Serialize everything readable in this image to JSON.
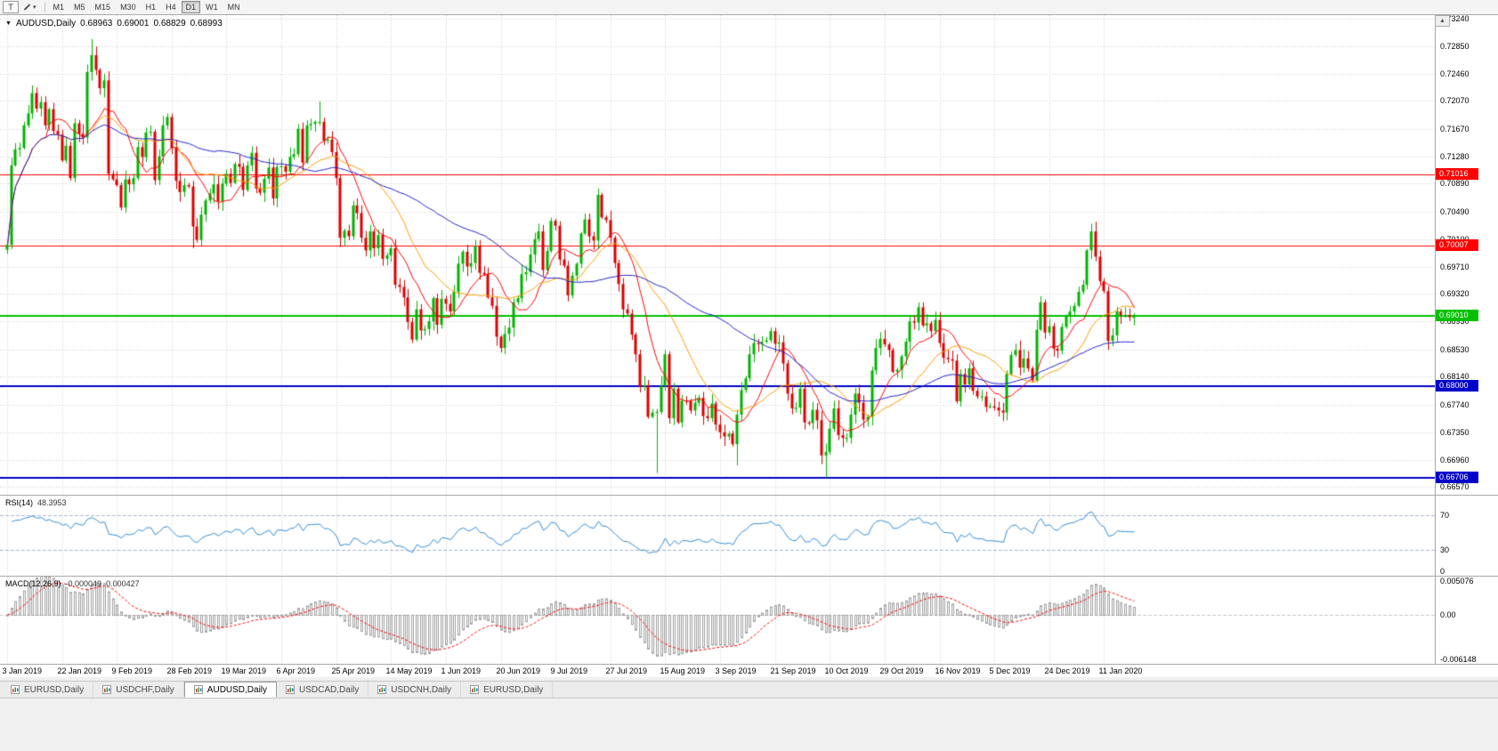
{
  "toolbar": {
    "tools": [
      {
        "label": "T",
        "icon": "chart-tool-icon"
      },
      {
        "icon": "pencil-icon",
        "caret": "▾"
      }
    ],
    "timeframes": [
      "M1",
      "M5",
      "M15",
      "M30",
      "H1",
      "H4",
      "D1",
      "W1",
      "MN"
    ],
    "active_timeframe": "D1"
  },
  "chart_ui": {
    "collapse_glyph": "▼",
    "scroll_up_glyph": "▲"
  },
  "tabs": {
    "items": [
      {
        "label": "EURUSD,Daily",
        "active": false
      },
      {
        "label": "USDCHF,Daily",
        "active": false
      },
      {
        "label": "AUDUSD,Daily",
        "active": true
      },
      {
        "label": "USDCAD,Daily",
        "active": false
      },
      {
        "label": "USDCNH,Daily",
        "active": false
      },
      {
        "label": "EURUSD,Daily",
        "active": false
      }
    ]
  },
  "chart_data": {
    "type": "candlestick",
    "title": "AUDUSD,Daily",
    "ohlc_display": {
      "open": "0.68963",
      "high": "0.69001",
      "low": "0.68829",
      "close": "0.68993"
    },
    "ylim": [
      0.6646,
      0.7329
    ],
    "y_ticks": [
      "0.73240",
      "0.72850",
      "0.72460",
      "0.72070",
      "0.71670",
      "0.71280",
      "0.70890",
      "0.70490",
      "0.70100",
      "0.69710",
      "0.69320",
      "0.68930",
      "0.68530",
      "0.68140",
      "0.67740",
      "0.67350",
      "0.66960",
      "0.66570"
    ],
    "x_tick_labels": [
      "3 Jan 2019",
      "22 Jan 2019",
      "9 Feb 2019",
      "28 Feb 2019",
      "19 Mar 2019",
      "6 Apr 2019",
      "25 Apr 2019",
      "14 May 2019",
      "1 Jun 2019",
      "20 Jun 2019",
      "9 Jul 2019",
      "27 Jul 2019",
      "15 Aug 2019",
      "3 Sep 2019",
      "21 Sep 2019",
      "10 Oct 2019",
      "29 Oct 2019",
      "16 Nov 2019",
      "5 Dec 2019",
      "24 Dec 2019",
      "11 Jan 2020"
    ],
    "bars_per_x_tick": 13,
    "first_open": 0.6995,
    "closes": [
      0.7002,
      0.7115,
      0.7138,
      0.714,
      0.7172,
      0.7189,
      0.7218,
      0.7196,
      0.7205,
      0.7172,
      0.7195,
      0.7164,
      0.7159,
      0.7122,
      0.7143,
      0.7097,
      0.7175,
      0.716,
      0.7155,
      0.7248,
      0.7272,
      0.7251,
      0.7225,
      0.7236,
      0.7103,
      0.7095,
      0.7087,
      0.7055,
      0.7095,
      0.7088,
      0.7097,
      0.7141,
      0.7127,
      0.7162,
      0.7163,
      0.7094,
      0.7128,
      0.7172,
      0.7184,
      0.714,
      0.7093,
      0.7077,
      0.7087,
      0.7085,
      0.7028,
      0.7009,
      0.7045,
      0.7065,
      0.7075,
      0.7088,
      0.7064,
      0.7089,
      0.7103,
      0.709,
      0.7117,
      0.7113,
      0.708,
      0.7115,
      0.7133,
      0.7082,
      0.7076,
      0.7096,
      0.7112,
      0.7068,
      0.7113,
      0.7114,
      0.7106,
      0.7127,
      0.7131,
      0.7167,
      0.7119,
      0.7172,
      0.7174,
      0.7177,
      0.7177,
      0.715,
      0.7152,
      0.7134,
      0.7097,
      0.7012,
      0.7022,
      0.7014,
      0.7058,
      0.7047,
      0.7012,
      0.6994,
      0.7021,
      0.6997,
      0.7016,
      0.6982,
      0.6987,
      0.6997,
      0.6945,
      0.6942,
      0.6927,
      0.6892,
      0.6867,
      0.691,
      0.688,
      0.6882,
      0.6893,
      0.6926,
      0.6888,
      0.6925,
      0.6918,
      0.6907,
      0.6935,
      0.6975,
      0.6992,
      0.6971,
      0.6976,
      0.7,
      0.6962,
      0.696,
      0.6927,
      0.6915,
      0.6871,
      0.6855,
      0.6875,
      0.6884,
      0.692,
      0.6926,
      0.696,
      0.6963,
      0.6988,
      0.701,
      0.7021,
      0.6966,
      0.6993,
      0.7036,
      0.7029,
      0.6981,
      0.6972,
      0.693,
      0.6958,
      0.6975,
      0.7018,
      0.7038,
      0.7014,
      0.7008,
      0.7073,
      0.7041,
      0.7037,
      0.7012,
      0.6976,
      0.6946,
      0.691,
      0.6904,
      0.6874,
      0.6846,
      0.68,
      0.6802,
      0.6757,
      0.6763,
      0.6764,
      0.6801,
      0.6846,
      0.6755,
      0.6797,
      0.6749,
      0.678,
      0.6779,
      0.6766,
      0.6777,
      0.6784,
      0.6758,
      0.6755,
      0.6776,
      0.6746,
      0.6735,
      0.6729,
      0.6733,
      0.6718,
      0.676,
      0.6795,
      0.6812,
      0.6846,
      0.6862,
      0.6861,
      0.6864,
      0.6866,
      0.6879,
      0.6861,
      0.6863,
      0.6833,
      0.679,
      0.6769,
      0.677,
      0.6797,
      0.6749,
      0.6748,
      0.6767,
      0.6752,
      0.6702,
      0.6707,
      0.674,
      0.6769,
      0.6731,
      0.6727,
      0.6727,
      0.676,
      0.679,
      0.6777,
      0.6753,
      0.6757,
      0.6823,
      0.6855,
      0.6868,
      0.686,
      0.6852,
      0.6821,
      0.6824,
      0.6843,
      0.6864,
      0.6893,
      0.6891,
      0.6913,
      0.6887,
      0.689,
      0.6879,
      0.6895,
      0.6862,
      0.6841,
      0.6839,
      0.6837,
      0.6779,
      0.6818,
      0.6803,
      0.6826,
      0.6794,
      0.6786,
      0.6786,
      0.6771,
      0.6772,
      0.677,
      0.6766,
      0.6763,
      0.6818,
      0.6845,
      0.6852,
      0.6827,
      0.684,
      0.6826,
      0.6809,
      0.6881,
      0.692,
      0.6877,
      0.6886,
      0.6854,
      0.6851,
      0.6885,
      0.69,
      0.6907,
      0.6915,
      0.6935,
      0.6945,
      0.6994,
      0.7021,
      0.6985,
      0.695,
      0.6936,
      0.6865,
      0.6873,
      0.6907,
      0.6902,
      0.6902,
      0.6899,
      0.68993
    ],
    "wick_overrides": {
      "20": {
        "high": 0.7295
      },
      "44": {
        "low": 0.6997
      },
      "74": {
        "high": 0.7206
      },
      "96": {
        "low": 0.6862
      },
      "140": {
        "high": 0.7082
      },
      "154": {
        "low": 0.6677
      },
      "173": {
        "low": 0.6688
      },
      "194": {
        "low": 0.667
      },
      "257": {
        "high": 0.7032
      }
    },
    "colors": {
      "up": "#00b400",
      "down": "#dd0000",
      "grid": "#cdcdcd"
    },
    "moving_averages": [
      {
        "period": 10,
        "color": "#ff0000"
      },
      {
        "period": 21,
        "color": "#ff9c00"
      },
      {
        "period": 50,
        "color": "#2222cc"
      }
    ],
    "hlines": [
      {
        "label": "0.71016",
        "price": 0.71016,
        "color": "#ff0000",
        "width": 1
      },
      {
        "label": "0.70007",
        "price": 0.70007,
        "color": "#ff0000",
        "width": 1
      },
      {
        "label": "0.69010",
        "price": 0.6901,
        "color": "#00c000",
        "width": 2
      },
      {
        "label": "0.68000",
        "price": 0.68,
        "color": "#0000c8",
        "width": 2
      },
      {
        "label": "0.66706",
        "price": 0.66706,
        "color": "#0000c8",
        "width": 2
      }
    ],
    "indicators": {
      "rsi": {
        "name": "RSI(14)",
        "value": "48.3953",
        "period": 14,
        "levels": [
          70,
          30
        ],
        "range": [
          0,
          92
        ],
        "color": "#2f8bd6",
        "level_color": "#a8b4d8",
        "axis_labels": [
          {
            "text": "70",
            "value": 70
          },
          {
            "text": "30",
            "value": 30
          },
          {
            "text": "0",
            "value": 0
          }
        ]
      },
      "macd": {
        "name": "MACD(12,26,9)",
        "value_main": "-0.000049",
        "value_signal": "0.000427",
        "fast": 12,
        "slow": 26,
        "signal": 9,
        "range": [
          -0.00663,
          0.00519
        ],
        "colors": {
          "histogram": "#a0a0a0",
          "signal": "#ff0000",
          "zero": "#c8c8c8"
        },
        "axis_labels": [
          {
            "text": "0.005076",
            "value": 0.005076
          },
          {
            "text": "0.00",
            "value": 0
          },
          {
            "text": "-0.006148",
            "value": -0.006148
          }
        ]
      }
    }
  }
}
